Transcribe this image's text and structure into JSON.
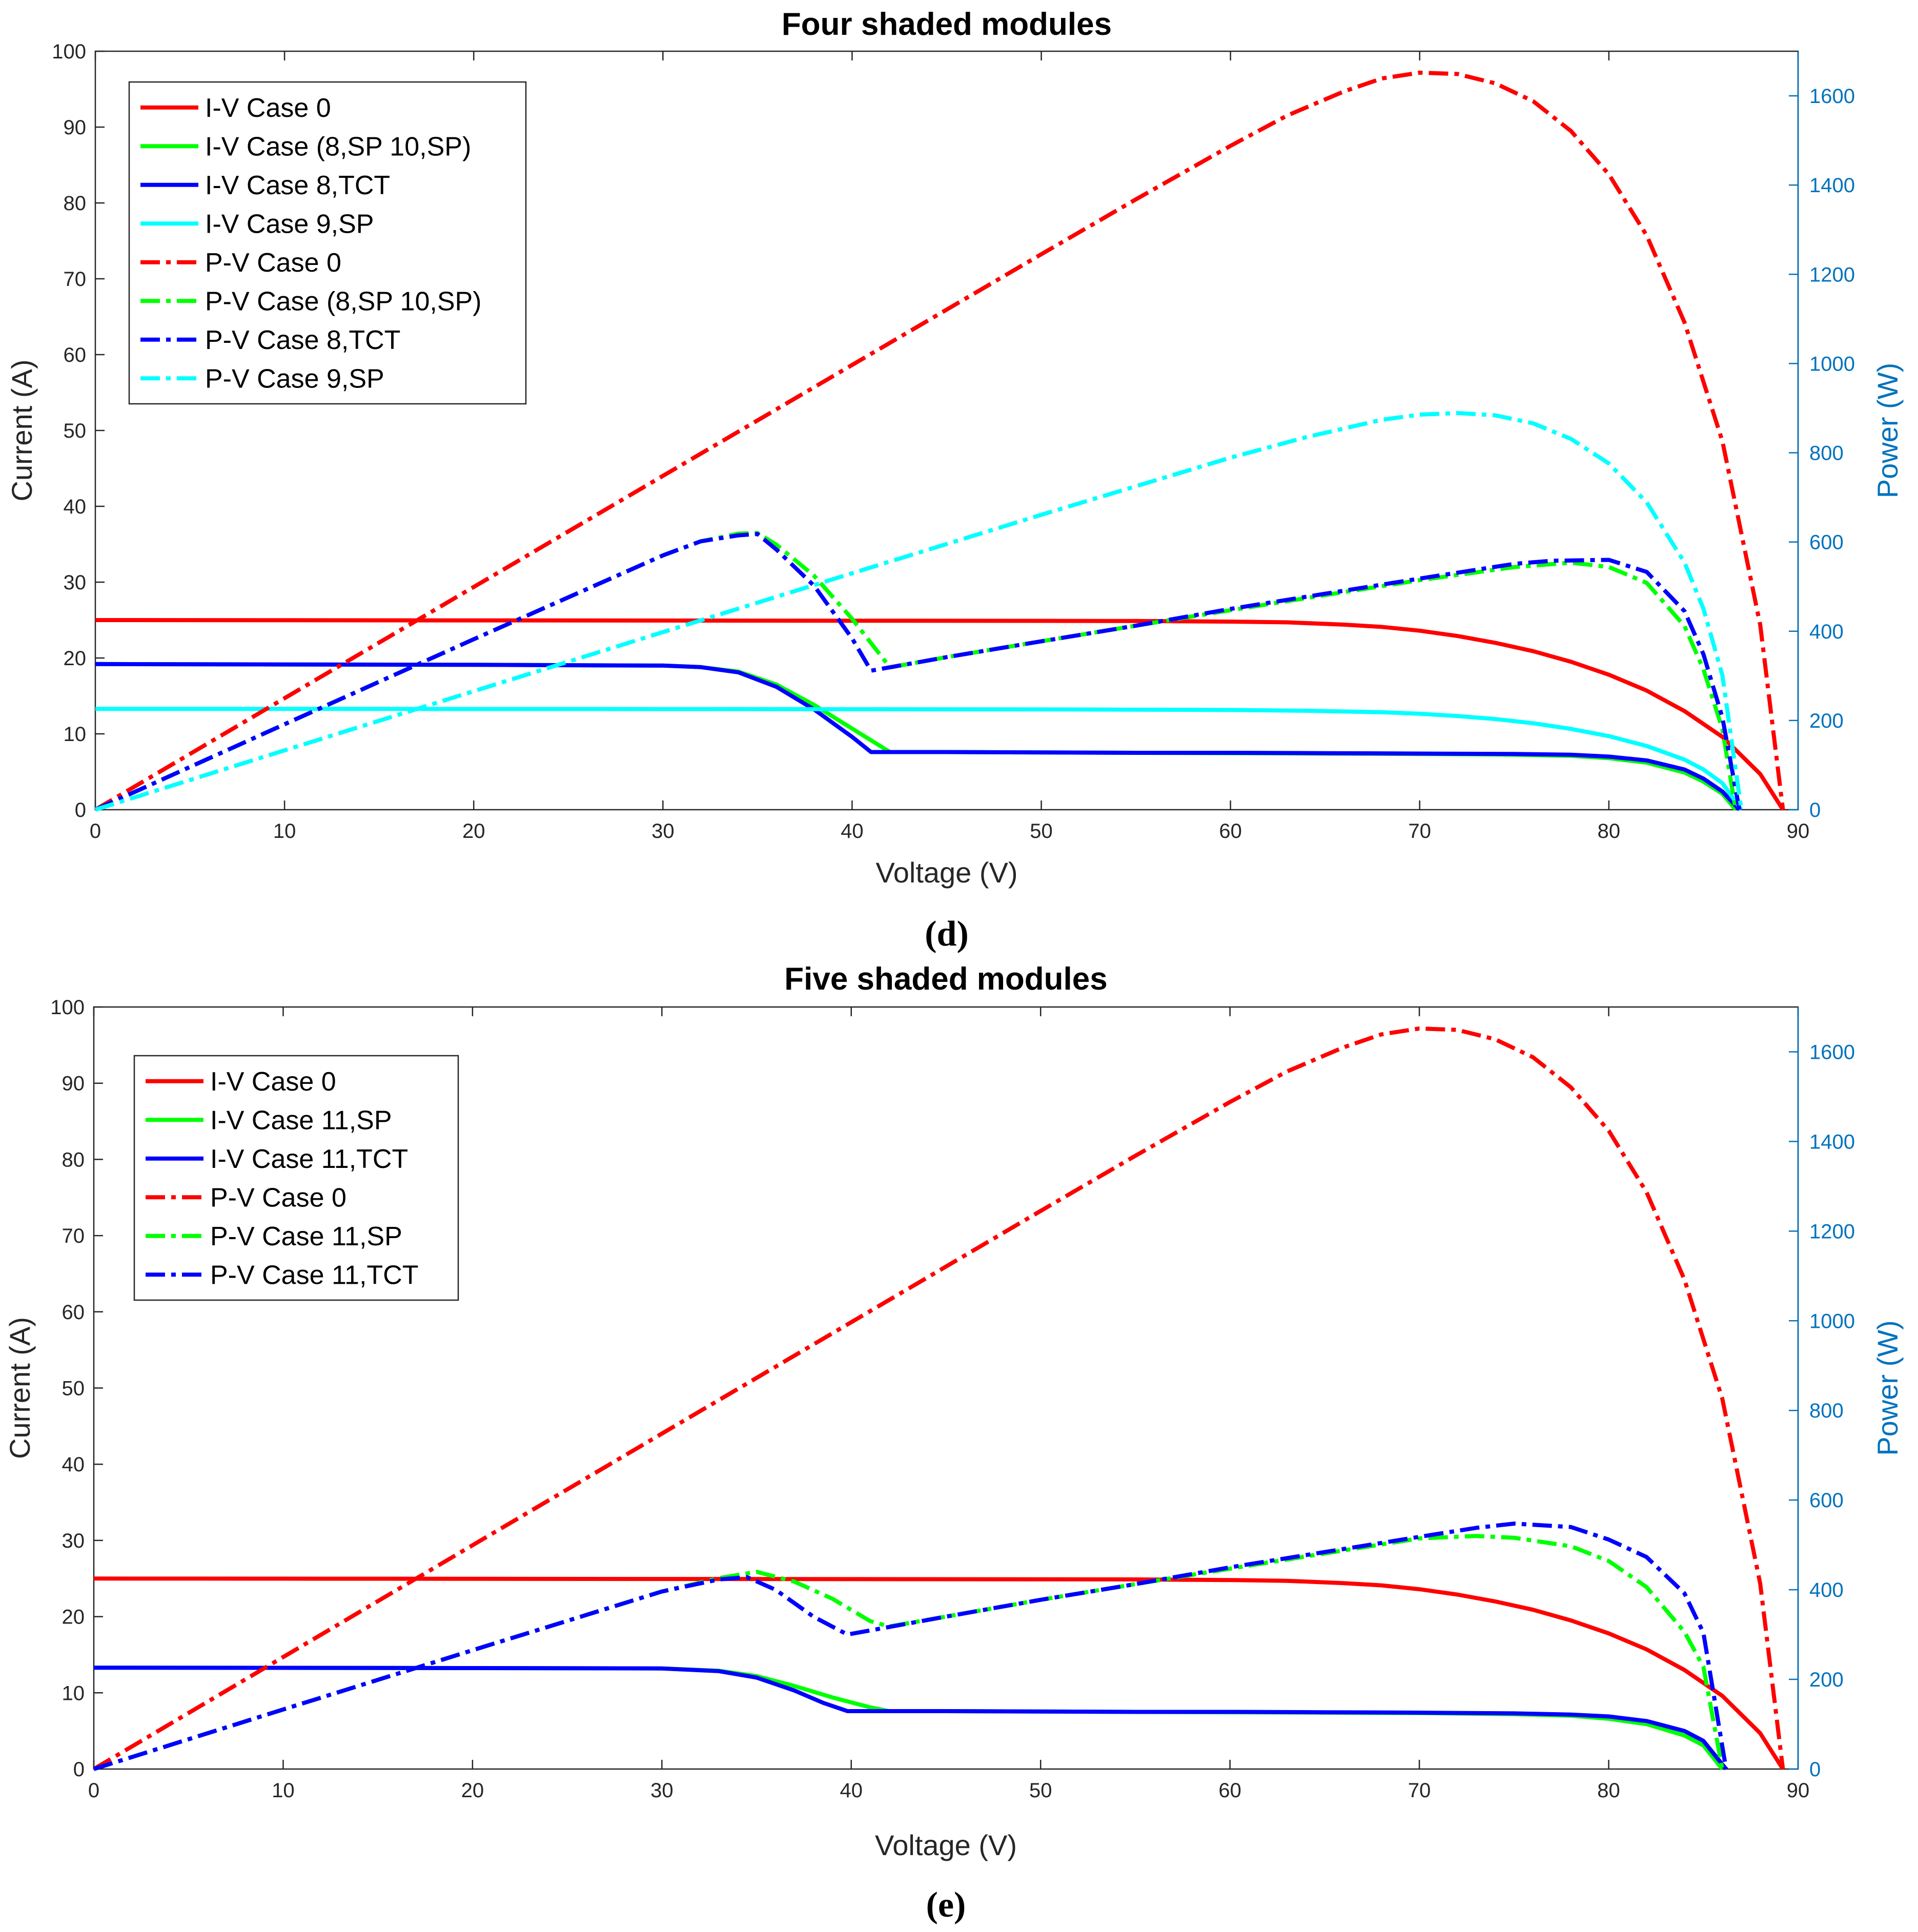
{
  "chart_data": [
    {
      "type": "line",
      "title": "Four shaded modules",
      "caption": "(d)",
      "xlabel": "Voltage (V)",
      "ylabel": "Current (A)",
      "y2label": "Power (W)",
      "xlim": [
        0,
        90
      ],
      "ylim": [
        0,
        100
      ],
      "y2lim": [
        0,
        1700
      ],
      "xticks": [
        "0",
        "10",
        "20",
        "30",
        "40",
        "50",
        "60",
        "70",
        "80",
        "90"
      ],
      "yticks": [
        "0",
        "10",
        "20",
        "30",
        "40",
        "50",
        "60",
        "70",
        "80",
        "90",
        "100"
      ],
      "y2ticks": [
        "0",
        "200",
        "400",
        "600",
        "800",
        "1000",
        "1200",
        "1400",
        "1600"
      ],
      "legend_position": "top-left",
      "series": [
        {
          "name": "I-V Case 0",
          "color": "#FF0000",
          "style": "solid",
          "axis": "left",
          "x": [
            0,
            10,
            20,
            30,
            40,
            50,
            55,
            60,
            63,
            66,
            68,
            70,
            72,
            74,
            76,
            78,
            80,
            82,
            84,
            86,
            88,
            89.2
          ],
          "y": [
            25.0,
            24.98,
            24.96,
            24.94,
            24.92,
            24.9,
            24.88,
            24.8,
            24.7,
            24.4,
            24.1,
            23.6,
            22.9,
            22.0,
            20.9,
            19.5,
            17.8,
            15.7,
            13.0,
            9.6,
            4.7,
            0
          ]
        },
        {
          "name": "I-V Case (8,SP 10,SP)",
          "color": "#00FF00",
          "style": "solid",
          "axis": "left",
          "x": [
            0,
            10,
            20,
            30,
            32,
            34,
            36,
            38,
            40,
            42,
            45,
            50,
            55,
            60,
            65,
            70,
            75,
            78,
            80,
            82,
            84,
            85,
            86,
            86.7
          ],
          "y": [
            19.2,
            19.15,
            19.1,
            19.0,
            18.8,
            18.2,
            16.5,
            13.8,
            10.7,
            7.6,
            7.6,
            7.55,
            7.5,
            7.45,
            7.4,
            7.35,
            7.25,
            7.1,
            6.8,
            6.2,
            4.9,
            3.7,
            2.1,
            0
          ]
        },
        {
          "name": "I-V Case 8,TCT",
          "color": "#0000FF",
          "style": "solid",
          "axis": "left",
          "x": [
            0,
            10,
            20,
            30,
            32,
            34,
            36,
            38,
            40,
            41,
            45,
            50,
            55,
            60,
            65,
            70,
            75,
            78,
            80,
            82,
            84,
            85,
            86,
            86.9
          ],
          "y": [
            19.2,
            19.15,
            19.1,
            19.0,
            18.8,
            18.1,
            16.2,
            13.2,
            9.6,
            7.6,
            7.6,
            7.55,
            7.5,
            7.5,
            7.45,
            7.4,
            7.35,
            7.25,
            7.0,
            6.5,
            5.3,
            4.1,
            2.4,
            0
          ]
        },
        {
          "name": "I-V Case 9,SP",
          "color": "#00FFFF",
          "style": "solid",
          "axis": "left",
          "x": [
            0,
            10,
            20,
            30,
            40,
            50,
            60,
            64,
            68,
            70,
            72,
            74,
            76,
            78,
            80,
            82,
            84,
            85,
            86,
            87
          ],
          "y": [
            13.3,
            13.3,
            13.28,
            13.27,
            13.25,
            13.22,
            13.15,
            13.05,
            12.85,
            12.65,
            12.35,
            11.95,
            11.4,
            10.65,
            9.7,
            8.4,
            6.6,
            5.3,
            3.5,
            0
          ]
        },
        {
          "name": "P-V Case 0",
          "color": "#FF0000",
          "style": "dashdot",
          "axis": "right",
          "x": [
            0,
            10,
            20,
            30,
            40,
            50,
            55,
            60,
            63,
            66,
            68,
            70,
            72,
            74,
            76,
            78,
            80,
            82,
            84,
            86,
            88,
            89.2
          ],
          "y": [
            0,
            249.8,
            499.2,
            748.2,
            996.8,
            1245,
            1368,
            1488,
            1556,
            1610,
            1639,
            1652,
            1649,
            1628,
            1588,
            1521,
            1424,
            1287,
            1092,
            826,
            414,
            0
          ]
        },
        {
          "name": "P-V Case (8,SP 10,SP)",
          "color": "#00FF00",
          "style": "dashdot",
          "axis": "right",
          "x": [
            0,
            10,
            20,
            30,
            32,
            34,
            35,
            36,
            38,
            40,
            42,
            45,
            50,
            55,
            60,
            65,
            70,
            75,
            78,
            80,
            82,
            84,
            85,
            86,
            86.7
          ],
          "y": [
            0,
            191.5,
            382,
            570,
            601.6,
            618.8,
            620,
            594,
            524,
            428,
            319,
            342,
            377.5,
            412.5,
            447,
            481,
            514.5,
            543.8,
            553.8,
            544,
            508.4,
            411.6,
            314.5,
            180.6,
            0
          ]
        },
        {
          "name": "P-V Case 8,TCT",
          "color": "#0000FF",
          "style": "dashdot",
          "axis": "right",
          "x": [
            0,
            10,
            20,
            30,
            32,
            34,
            35,
            36,
            38,
            40,
            41,
            45,
            50,
            55,
            60,
            65,
            70,
            75,
            77,
            80,
            82,
            84,
            85,
            86,
            86.9
          ],
          "y": [
            0,
            191.5,
            382,
            570,
            601.6,
            615,
            618,
            583,
            501.6,
            384,
            311.6,
            342,
            377.5,
            412.5,
            450,
            484,
            518,
            551,
            558,
            560,
            533,
            445,
            348.5,
            206.4,
            0
          ]
        },
        {
          "name": "P-V Case 9,SP",
          "color": "#00FFFF",
          "style": "dashdot",
          "axis": "right",
          "x": [
            0,
            10,
            20,
            30,
            40,
            50,
            60,
            64,
            68,
            70,
            72,
            74,
            76,
            78,
            80,
            82,
            84,
            85,
            86,
            87
          ],
          "y": [
            0,
            133,
            265.6,
            398,
            530,
            661,
            789,
            835,
            874,
            885.5,
            889,
            884,
            866,
            831,
            776,
            689,
            554,
            450.5,
            301,
            0
          ]
        }
      ]
    },
    {
      "type": "line",
      "title": "Five shaded modules",
      "caption": "(e)",
      "xlabel": "Voltage (V)",
      "ylabel": "Current (A)",
      "y2label": "Power (W)",
      "xlim": [
        0,
        90
      ],
      "ylim": [
        0,
        100
      ],
      "y2lim": [
        0,
        1700
      ],
      "xticks": [
        "0",
        "10",
        "20",
        "30",
        "40",
        "50",
        "60",
        "70",
        "80",
        "90"
      ],
      "yticks": [
        "0",
        "10",
        "20",
        "30",
        "40",
        "50",
        "60",
        "70",
        "80",
        "90",
        "100"
      ],
      "y2ticks": [
        "0",
        "200",
        "400",
        "600",
        "800",
        "1000",
        "1200",
        "1400",
        "1600"
      ],
      "legend_position": "top-left",
      "series": [
        {
          "name": "I-V Case 0",
          "color": "#FF0000",
          "style": "solid",
          "axis": "left",
          "x": [
            0,
            10,
            20,
            30,
            40,
            50,
            55,
            60,
            63,
            66,
            68,
            70,
            72,
            74,
            76,
            78,
            80,
            82,
            84,
            86,
            88,
            89.2
          ],
          "y": [
            25.0,
            24.98,
            24.96,
            24.94,
            24.92,
            24.9,
            24.88,
            24.8,
            24.7,
            24.4,
            24.1,
            23.6,
            22.9,
            22.0,
            20.9,
            19.5,
            17.8,
            15.7,
            13.0,
            9.6,
            4.7,
            0
          ]
        },
        {
          "name": "I-V Case 11,SP",
          "color": "#00FF00",
          "style": "solid",
          "axis": "left",
          "x": [
            0,
            10,
            20,
            30,
            33,
            35,
            37,
            39,
            41,
            42,
            45,
            50,
            55,
            60,
            65,
            70,
            75,
            78,
            80,
            82,
            84,
            85,
            86
          ],
          "y": [
            13.3,
            13.28,
            13.25,
            13.2,
            12.9,
            12.2,
            10.9,
            9.4,
            8.1,
            7.6,
            7.6,
            7.55,
            7.5,
            7.45,
            7.4,
            7.35,
            7.2,
            7.0,
            6.6,
            5.9,
            4.4,
            3.1,
            0
          ]
        },
        {
          "name": "I-V Case 11,TCT",
          "color": "#0000FF",
          "style": "solid",
          "axis": "left",
          "x": [
            0,
            10,
            20,
            30,
            33,
            35,
            37,
            38.5,
            39.8,
            45,
            50,
            55,
            60,
            65,
            70,
            75,
            78,
            80,
            82,
            84,
            85,
            86.2
          ],
          "y": [
            13.3,
            13.28,
            13.25,
            13.2,
            12.85,
            12.0,
            10.3,
            8.7,
            7.6,
            7.6,
            7.55,
            7.5,
            7.5,
            7.45,
            7.4,
            7.3,
            7.15,
            6.9,
            6.3,
            5.0,
            3.7,
            0
          ]
        },
        {
          "name": "P-V Case 0",
          "color": "#FF0000",
          "style": "dashdot",
          "axis": "right",
          "x": [
            0,
            10,
            20,
            30,
            40,
            50,
            55,
            60,
            63,
            66,
            68,
            70,
            72,
            74,
            76,
            78,
            80,
            82,
            84,
            86,
            88,
            89.2
          ],
          "y": [
            0,
            249.8,
            499.2,
            748.2,
            996.8,
            1245,
            1368,
            1488,
            1556,
            1610,
            1639,
            1652,
            1649,
            1628,
            1588,
            1521,
            1424,
            1287,
            1092,
            826,
            414,
            0
          ]
        },
        {
          "name": "P-V Case 11,SP",
          "color": "#00FF00",
          "style": "dashdot",
          "axis": "right",
          "x": [
            0,
            10,
            20,
            30,
            33,
            35,
            37,
            39,
            41,
            42,
            45,
            50,
            55,
            60,
            65,
            70,
            73,
            75,
            78,
            80,
            82,
            84,
            85,
            86
          ],
          "y": [
            0,
            132.8,
            265,
            396,
            425.7,
            440,
            418,
            380,
            330,
            318,
            340,
            377.5,
            412.5,
            447,
            481,
            514.5,
            520,
            516,
            497,
            464,
            406,
            306,
            228,
            0
          ]
        },
        {
          "name": "P-V Case 11,TCT",
          "color": "#0000FF",
          "style": "dashdot",
          "axis": "right",
          "x": [
            0,
            10,
            20,
            30,
            33,
            34.5,
            36,
            38,
            39.8,
            45,
            50,
            55,
            60,
            65,
            70,
            73,
            75,
            78,
            80,
            82,
            84,
            85,
            86.2
          ],
          "y": [
            0,
            132.8,
            265,
            396,
            423,
            428,
            400,
            340,
            300,
            340,
            377.5,
            412.5,
            450,
            484,
            518,
            538,
            547.5,
            540,
            512,
            473,
            392,
            304,
            0
          ]
        }
      ]
    }
  ]
}
